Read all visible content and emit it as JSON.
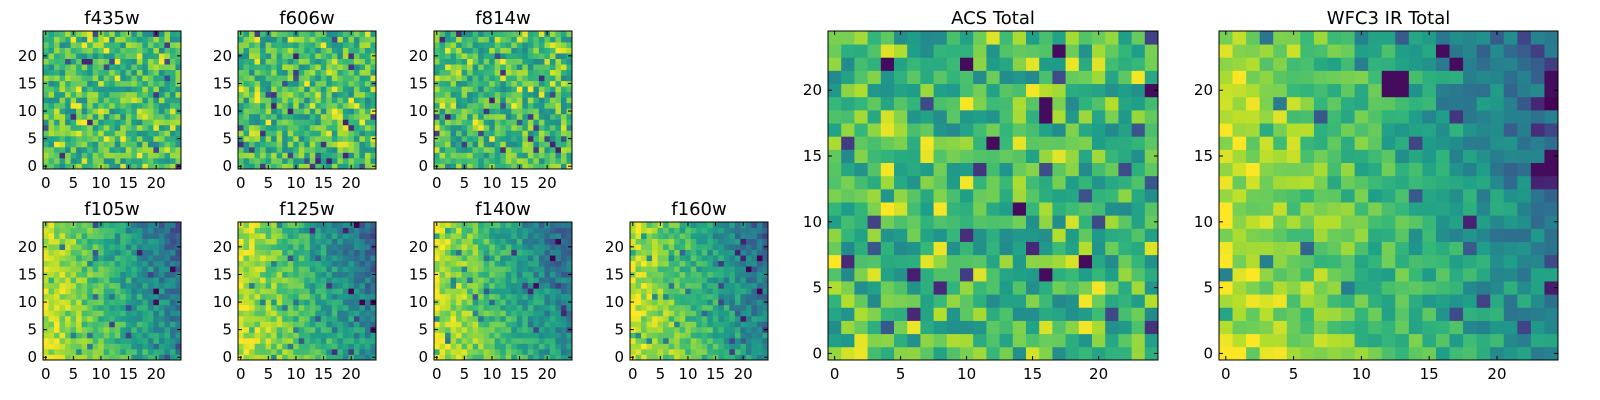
{
  "chart_data": [
    {
      "type": "heatmap",
      "title": "f435w",
      "x_ticks": [
        "0",
        "5",
        "10",
        "15",
        "20"
      ],
      "y_ticks": [
        "0",
        "5",
        "10",
        "15",
        "20"
      ],
      "xlim": [
        -0.5,
        24.5
      ],
      "ylim": [
        -0.5,
        24.5
      ],
      "grid_size": 25,
      "colormap": "viridis",
      "texture": "fine-noise"
    },
    {
      "type": "heatmap",
      "title": "f606w",
      "x_ticks": [
        "0",
        "5",
        "10",
        "15",
        "20"
      ],
      "y_ticks": [
        "0",
        "5",
        "10",
        "15",
        "20"
      ],
      "xlim": [
        -0.5,
        24.5
      ],
      "ylim": [
        -0.5,
        24.5
      ],
      "grid_size": 25,
      "colormap": "viridis",
      "texture": "fine-noise"
    },
    {
      "type": "heatmap",
      "title": "f814w",
      "x_ticks": [
        "0",
        "5",
        "10",
        "15",
        "20"
      ],
      "y_ticks": [
        "0",
        "5",
        "10",
        "15",
        "20"
      ],
      "xlim": [
        -0.5,
        24.5
      ],
      "ylim": [
        -0.5,
        24.5
      ],
      "grid_size": 25,
      "colormap": "viridis",
      "texture": "fine-noise"
    },
    {
      "type": "heatmap",
      "title": "f105w",
      "x_ticks": [
        "0",
        "5",
        "10",
        "15",
        "20"
      ],
      "y_ticks": [
        "0",
        "5",
        "10",
        "15",
        "20"
      ],
      "xlim": [
        -0.5,
        24.5
      ],
      "ylim": [
        -0.5,
        24.5
      ],
      "grid_size": 25,
      "colormap": "viridis",
      "texture": "smooth-gradient"
    },
    {
      "type": "heatmap",
      "title": "f125w",
      "x_ticks": [
        "0",
        "5",
        "10",
        "15",
        "20"
      ],
      "y_ticks": [
        "0",
        "5",
        "10",
        "15",
        "20"
      ],
      "xlim": [
        -0.5,
        24.5
      ],
      "ylim": [
        -0.5,
        24.5
      ],
      "grid_size": 25,
      "colormap": "viridis",
      "texture": "smooth-gradient"
    },
    {
      "type": "heatmap",
      "title": "f140w",
      "x_ticks": [
        "0",
        "5",
        "10",
        "15",
        "20"
      ],
      "y_ticks": [
        "0",
        "5",
        "10",
        "15",
        "20"
      ],
      "xlim": [
        -0.5,
        24.5
      ],
      "ylim": [
        -0.5,
        24.5
      ],
      "grid_size": 25,
      "colormap": "viridis",
      "texture": "smooth-gradient"
    },
    {
      "type": "heatmap",
      "title": "f160w",
      "x_ticks": [
        "0",
        "5",
        "10",
        "15",
        "20"
      ],
      "y_ticks": [
        "0",
        "5",
        "10",
        "15",
        "20"
      ],
      "xlim": [
        -0.5,
        24.5
      ],
      "ylim": [
        -0.5,
        24.5
      ],
      "grid_size": 25,
      "colormap": "viridis",
      "texture": "smooth-gradient"
    },
    {
      "type": "heatmap",
      "title": "ACS Total",
      "x_ticks": [
        "0",
        "10",
        "20"
      ],
      "x_minor_ticks": [
        "5",
        "15"
      ],
      "y_ticks": [
        "0",
        "5",
        "10",
        "15",
        "20"
      ],
      "xlim": [
        -0.5,
        24.5
      ],
      "ylim": [
        -0.5,
        24.5
      ],
      "grid_size": 25,
      "colormap": "viridis",
      "texture": "fine-noise",
      "dark_pixels": [
        [
          4,
          22
        ],
        [
          17,
          23
        ],
        [
          12,
          16
        ],
        [
          16,
          18
        ],
        [
          16,
          19
        ],
        [
          14,
          11
        ],
        [
          19,
          7
        ],
        [
          16,
          6
        ],
        [
          24,
          20
        ],
        [
          10,
          22
        ]
      ]
    },
    {
      "type": "heatmap",
      "title": "WFC3 IR Total",
      "x_ticks": [
        "0",
        "10",
        "20"
      ],
      "x_minor_ticks": [
        "5",
        "15"
      ],
      "y_ticks": [
        "0",
        "5",
        "10",
        "15",
        "20"
      ],
      "xlim": [
        -0.5,
        24.5
      ],
      "ylim": [
        -0.5,
        24.5
      ],
      "grid_size": 25,
      "colormap": "viridis",
      "texture": "smooth-gradient",
      "dark_pixels": [
        [
          12,
          20
        ],
        [
          13,
          20
        ],
        [
          12,
          21
        ],
        [
          13,
          21
        ],
        [
          16,
          23
        ],
        [
          17,
          22
        ],
        [
          23,
          14
        ],
        [
          24,
          14
        ],
        [
          24,
          15
        ],
        [
          24,
          21
        ],
        [
          24,
          20
        ]
      ]
    }
  ]
}
